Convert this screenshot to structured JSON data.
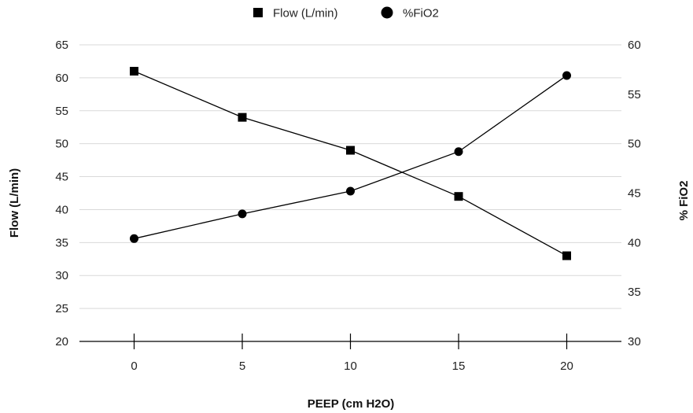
{
  "chart_data": {
    "type": "line",
    "title": "",
    "xlabel": "PEEP (cm H2O)",
    "ylabel": "Flow  (L/min)",
    "y2label": "% FiO2",
    "categories": [
      "0",
      "5",
      "10",
      "15",
      "20"
    ],
    "x": [
      0,
      5,
      10,
      15,
      20
    ],
    "ylim": [
      20,
      65
    ],
    "y_ticks": [
      20,
      25,
      30,
      35,
      40,
      45,
      50,
      55,
      60,
      65
    ],
    "y2lim": [
      30,
      60
    ],
    "y2_ticks": [
      30,
      35,
      40,
      45,
      50,
      55,
      60
    ],
    "grid": true,
    "legend_position": "top-center",
    "series": [
      {
        "name": "Flow (L/min)",
        "axis": "left",
        "marker": "square",
        "values": [
          61,
          54,
          49,
          42,
          33
        ]
      },
      {
        "name": "%FiO2",
        "axis": "right",
        "marker": "circle",
        "values": [
          40.4,
          42.9,
          45.2,
          49.2,
          56.9
        ]
      }
    ],
    "colors": {
      "line": "#000000",
      "grid": "#d9d9d9",
      "axis": "#000000"
    }
  }
}
